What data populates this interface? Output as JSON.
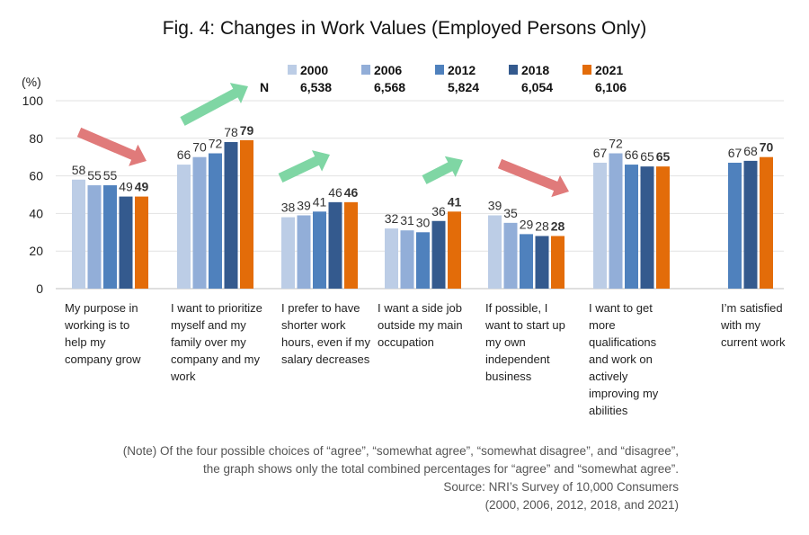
{
  "title": "Fig. 4: Changes in Work Values (Employed Persons Only)",
  "chart_data": {
    "type": "bar",
    "ylabel": "(%)",
    "ylim": [
      0,
      100
    ],
    "yticks": [
      0,
      20,
      40,
      60,
      80,
      100
    ],
    "categories": [
      "My purpose in working is to help my company grow",
      "I want to prioritize myself and my family over my company and my work",
      "I prefer to have shorter work hours, even if my salary decreases",
      "I want a side job outside my main occupation",
      "If possible, I want to start up my own independent business",
      "I want to get more qualifications and work on actively improving my abilities",
      "I’m satisfied with my current work"
    ],
    "legend_label": "N",
    "series": [
      {
        "name": "2000",
        "n": "6,538",
        "color": "#bccde6",
        "values": [
          58,
          66,
          38,
          32,
          39,
          67,
          null
        ]
      },
      {
        "name": "2006",
        "n": "6,568",
        "color": "#92aed8",
        "values": [
          55,
          70,
          39,
          31,
          35,
          72,
          null
        ]
      },
      {
        "name": "2012",
        "n": "5,824",
        "color": "#4f81bd",
        "values": [
          55,
          72,
          41,
          30,
          29,
          66,
          67
        ]
      },
      {
        "name": "2018",
        "n": "6,054",
        "color": "#345a8e",
        "values": [
          49,
          78,
          46,
          36,
          28,
          65,
          68
        ]
      },
      {
        "name": "2021",
        "n": "6,106",
        "color": "#e36c09",
        "values": [
          49,
          79,
          46,
          41,
          28,
          65,
          70
        ]
      }
    ],
    "trend_arrows": [
      {
        "direction": "down",
        "color": "#e07a7a"
      },
      {
        "direction": "up",
        "color": "#7fd6a4"
      },
      {
        "direction": "up",
        "color": "#7fd6a4"
      },
      {
        "direction": "up",
        "color": "#7fd6a4"
      },
      {
        "direction": "down",
        "color": "#e07a7a"
      }
    ]
  },
  "note": {
    "line1": "(Note) Of the four possible choices of “agree”, “somewhat agree”, “somewhat disagree”, and “disagree”,",
    "line2": "the graph shows only the total combined percentages for “agree” and “somewhat agree”.",
    "line3": "Source: NRI’s Survey of 10,000 Consumers",
    "line4": "(2000, 2006, 2012, 2018, and 2021)"
  }
}
